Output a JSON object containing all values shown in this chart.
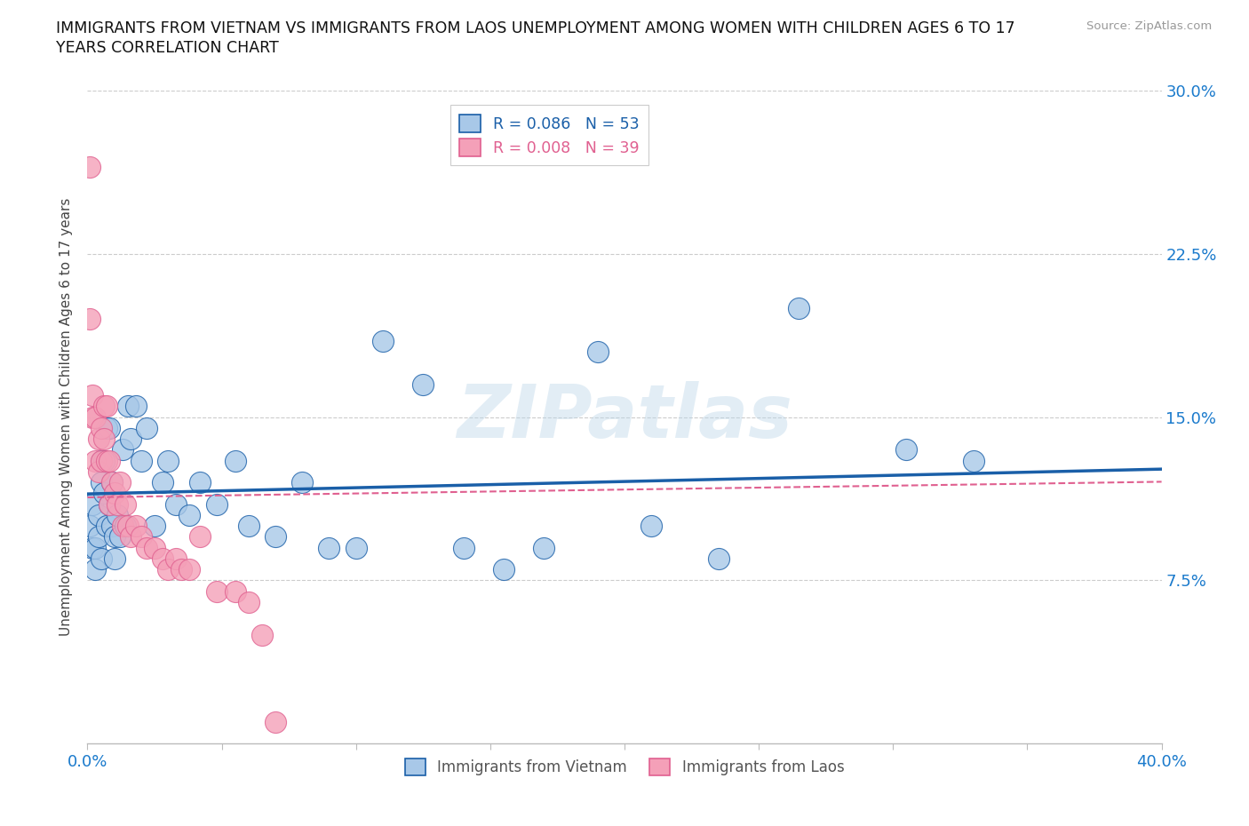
{
  "title_line1": "IMMIGRANTS FROM VIETNAM VS IMMIGRANTS FROM LAOS UNEMPLOYMENT AMONG WOMEN WITH CHILDREN AGES 6 TO 17",
  "title_line2": "YEARS CORRELATION CHART",
  "source": "Source: ZipAtlas.com",
  "ylabel_label": "Unemployment Among Women with Children Ages 6 to 17 years",
  "xlim": [
    0.0,
    0.4
  ],
  "ylim": [
    0.0,
    0.3
  ],
  "xticks": [
    0.0,
    0.05,
    0.1,
    0.15,
    0.2,
    0.25,
    0.3,
    0.35,
    0.4
  ],
  "yticks": [
    0.0,
    0.075,
    0.15,
    0.225,
    0.3
  ],
  "ytick_labels": [
    "",
    "7.5%",
    "15.0%",
    "22.5%",
    "30.0%"
  ],
  "xtick_labels": [
    "0.0%",
    "",
    "",
    "",
    "",
    "",
    "",
    "",
    "40.0%"
  ],
  "R_vietnam": 0.086,
  "N_vietnam": 53,
  "R_laos": 0.008,
  "N_laos": 39,
  "color_vietnam": "#a8c8e8",
  "color_laos": "#f4a0b8",
  "line_color_vietnam": "#1a5fa8",
  "line_color_laos": "#e06090",
  "background_color": "#ffffff",
  "watermark": "ZIPatlas",
  "vietnam_x": [
    0.001,
    0.002,
    0.002,
    0.003,
    0.003,
    0.004,
    0.004,
    0.005,
    0.005,
    0.005,
    0.006,
    0.006,
    0.007,
    0.007,
    0.008,
    0.008,
    0.009,
    0.009,
    0.01,
    0.01,
    0.011,
    0.012,
    0.013,
    0.014,
    0.015,
    0.016,
    0.018,
    0.02,
    0.022,
    0.025,
    0.028,
    0.03,
    0.033,
    0.038,
    0.042,
    0.048,
    0.055,
    0.06,
    0.07,
    0.08,
    0.09,
    0.1,
    0.11,
    0.125,
    0.14,
    0.155,
    0.17,
    0.19,
    0.21,
    0.235,
    0.265,
    0.305,
    0.33
  ],
  "vietnam_y": [
    0.1,
    0.11,
    0.09,
    0.09,
    0.08,
    0.105,
    0.095,
    0.13,
    0.12,
    0.085,
    0.13,
    0.115,
    0.145,
    0.1,
    0.145,
    0.11,
    0.12,
    0.1,
    0.095,
    0.085,
    0.105,
    0.095,
    0.135,
    0.1,
    0.155,
    0.14,
    0.155,
    0.13,
    0.145,
    0.1,
    0.12,
    0.13,
    0.11,
    0.105,
    0.12,
    0.11,
    0.13,
    0.1,
    0.095,
    0.12,
    0.09,
    0.09,
    0.185,
    0.165,
    0.09,
    0.08,
    0.09,
    0.18,
    0.1,
    0.085,
    0.2,
    0.135,
    0.13
  ],
  "laos_x": [
    0.001,
    0.001,
    0.002,
    0.002,
    0.003,
    0.003,
    0.004,
    0.004,
    0.005,
    0.005,
    0.006,
    0.006,
    0.007,
    0.007,
    0.008,
    0.008,
    0.009,
    0.01,
    0.011,
    0.012,
    0.013,
    0.014,
    0.015,
    0.016,
    0.018,
    0.02,
    0.022,
    0.025,
    0.028,
    0.03,
    0.033,
    0.035,
    0.038,
    0.042,
    0.048,
    0.055,
    0.06,
    0.065,
    0.07
  ],
  "laos_y": [
    0.265,
    0.195,
    0.16,
    0.15,
    0.15,
    0.13,
    0.14,
    0.125,
    0.145,
    0.13,
    0.155,
    0.14,
    0.155,
    0.13,
    0.13,
    0.11,
    0.12,
    0.115,
    0.11,
    0.12,
    0.1,
    0.11,
    0.1,
    0.095,
    0.1,
    0.095,
    0.09,
    0.09,
    0.085,
    0.08,
    0.085,
    0.08,
    0.08,
    0.095,
    0.07,
    0.07,
    0.065,
    0.05,
    0.01
  ]
}
